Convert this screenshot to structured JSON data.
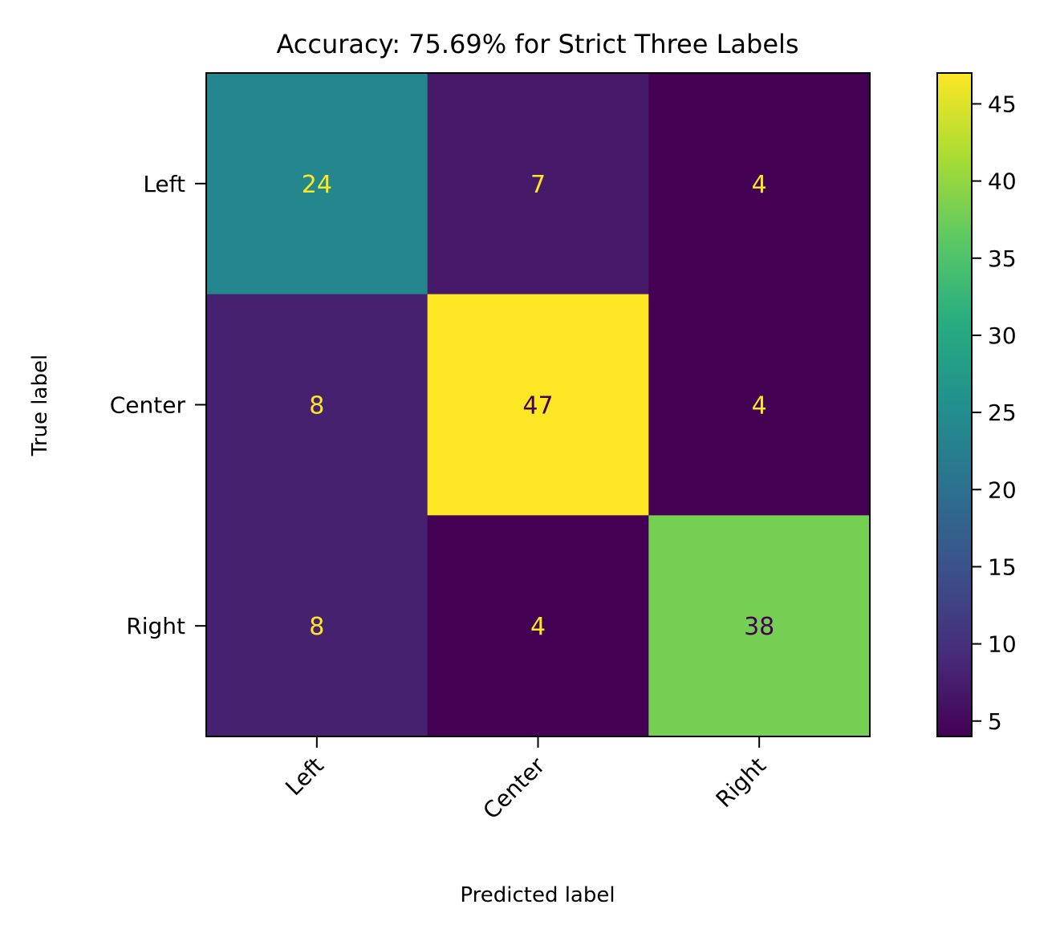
{
  "chart_data": {
    "type": "heatmap",
    "title": "Accuracy: 75.69% for Strict Three Labels",
    "xlabel": "Predicted label",
    "ylabel": "True label",
    "x_categories": [
      "Left",
      "Center",
      "Right"
    ],
    "y_categories": [
      "Left",
      "Center",
      "Right"
    ],
    "matrix": [
      [
        24,
        7,
        4
      ],
      [
        8,
        47,
        4
      ],
      [
        8,
        4,
        38
      ]
    ],
    "colormap": "viridis",
    "colorbar": {
      "range": [
        4,
        47
      ],
      "ticks": [
        5,
        10,
        15,
        20,
        25,
        30,
        35,
        40,
        45
      ]
    },
    "colors": {
      "text_light": "#fde725",
      "text_dark": "#440154"
    }
  }
}
